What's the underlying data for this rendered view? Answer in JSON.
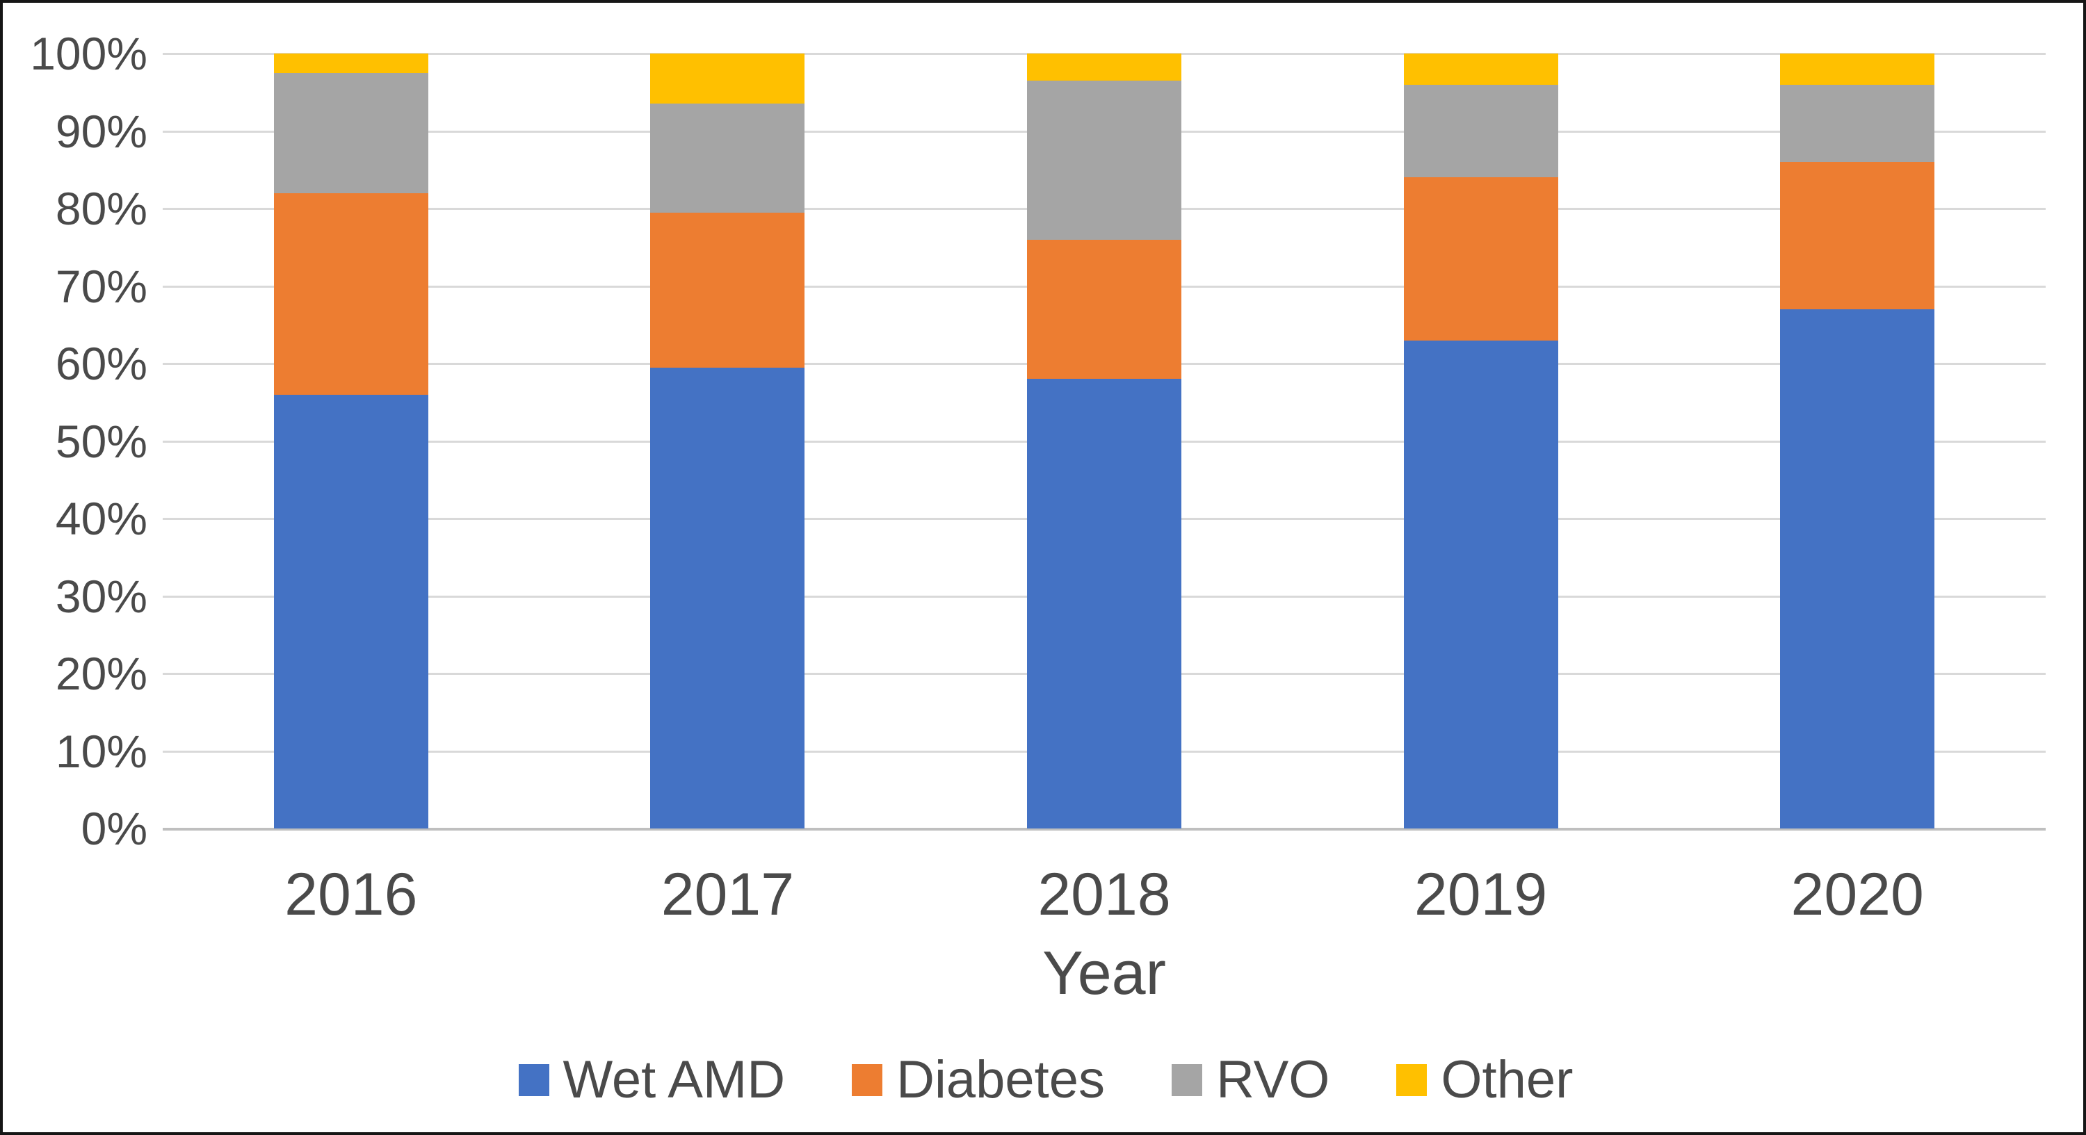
{
  "figure": {
    "background": "#ffffff",
    "border_color": "#161616"
  },
  "colors": {
    "gridline": "#d9d9d9",
    "axis_line": "#bfbfbf",
    "text": "#4a4a4a"
  },
  "chart_data": {
    "type": "bar",
    "subtype": "stacked-100-percent-column",
    "title": "",
    "xlabel": "Year",
    "ylabel": "",
    "grid": true,
    "legend_position": "bottom",
    "ylim": [
      0,
      100
    ],
    "y_ticks": [
      "100%",
      "90%",
      "80%",
      "70%",
      "60%",
      "50%",
      "40%",
      "30%",
      "20%",
      "10%",
      "0%"
    ],
    "categories": [
      "2016",
      "2017",
      "2018",
      "2019",
      "2020"
    ],
    "series": [
      {
        "name": "Wet AMD",
        "color": "#4472C4",
        "values": [
          56,
          59.5,
          58,
          63,
          67
        ]
      },
      {
        "name": "Diabetes",
        "color": "#ED7D31",
        "values": [
          26,
          20,
          18,
          21,
          19
        ]
      },
      {
        "name": "RVO",
        "color": "#A5A5A5",
        "values": [
          15.5,
          14,
          20.5,
          12,
          10
        ]
      },
      {
        "name": "Other",
        "color": "#FFC000",
        "values": [
          2.5,
          6.5,
          3.5,
          4,
          4
        ]
      }
    ]
  }
}
